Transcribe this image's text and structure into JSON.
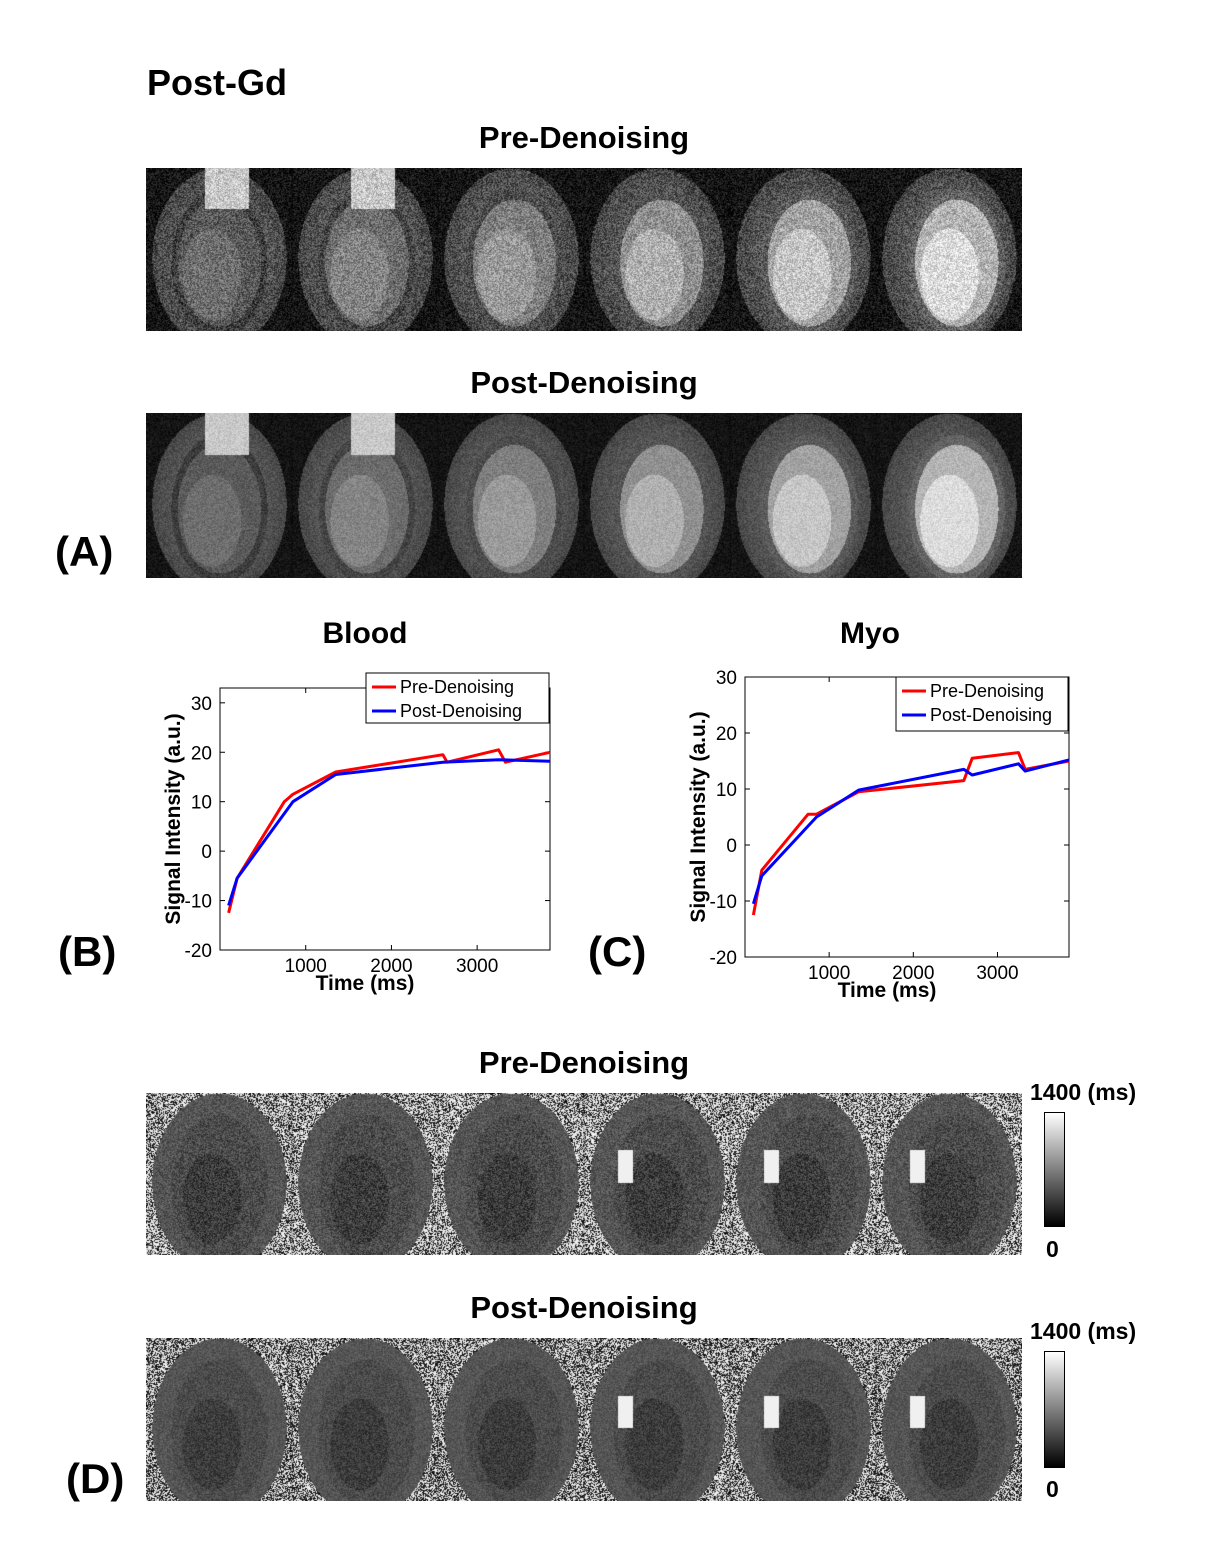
{
  "figure": {
    "main_title": "Post-Gd",
    "panel_a": {
      "label": "(A)",
      "pre_title": "Pre-Denoising",
      "post_title": "Post-Denoising",
      "frame_count": 6
    },
    "panel_b": {
      "label": "(B)"
    },
    "panel_c": {
      "label": "(C)"
    },
    "panel_d": {
      "label": "(D)",
      "pre_title": "Pre-Denoising",
      "post_title": "Post-Denoising",
      "colorbar_max": "1400 (ms)",
      "colorbar_min": "0",
      "colorbar_max_post": "1400 (ms)",
      "colorbar_min_post": "0"
    }
  },
  "chart_data": [
    {
      "type": "line",
      "title": "Blood",
      "xlabel": "Time (ms)",
      "ylabel": "Signal Intensity (a.u.)",
      "xlim": [
        0,
        3850
      ],
      "ylim": [
        -20,
        33
      ],
      "xticks": [
        1000,
        2000,
        3000
      ],
      "yticks": [
        -20,
        -10,
        0,
        10,
        20,
        30
      ],
      "legend_position": "top-right",
      "series": [
        {
          "name": "Pre-Denoising",
          "color": "#ff0000",
          "x": [
            100,
            200,
            750,
            850,
            1350,
            2600,
            2650,
            3250,
            3330,
            3850
          ],
          "y": [
            -12.5,
            -5.5,
            10,
            11.5,
            16,
            19.5,
            18,
            20.5,
            18,
            20
          ]
        },
        {
          "name": "Post-Denoising",
          "color": "#0000ff",
          "x": [
            100,
            200,
            850,
            1350,
            2600,
            3250,
            3850
          ],
          "y": [
            -11,
            -5.5,
            10,
            15.5,
            18,
            18.5,
            18.2
          ]
        }
      ]
    },
    {
      "type": "line",
      "title": "Myo",
      "xlabel": "Time (ms)",
      "ylabel": "Signal Intensity (a.u.)",
      "xlim": [
        0,
        3850
      ],
      "ylim": [
        -20,
        30
      ],
      "xticks": [
        1000,
        2000,
        3000
      ],
      "yticks": [
        -20,
        -10,
        0,
        10,
        20,
        30
      ],
      "legend_position": "top-right",
      "series": [
        {
          "name": "Pre-Denoising",
          "color": "#ff0000",
          "x": [
            100,
            200,
            750,
            850,
            1350,
            2600,
            2700,
            3250,
            3330,
            3850
          ],
          "y": [
            -12.5,
            -4.5,
            5.5,
            5.5,
            9.5,
            11.5,
            15.5,
            16.5,
            13.5,
            15
          ]
        },
        {
          "name": "Post-Denoising",
          "color": "#0000ff",
          "x": [
            100,
            200,
            850,
            1350,
            2600,
            2700,
            3250,
            3330,
            3850
          ],
          "y": [
            -10.5,
            -5.5,
            5,
            9.8,
            13.5,
            12.5,
            14.5,
            13.2,
            15.2
          ]
        }
      ]
    }
  ]
}
